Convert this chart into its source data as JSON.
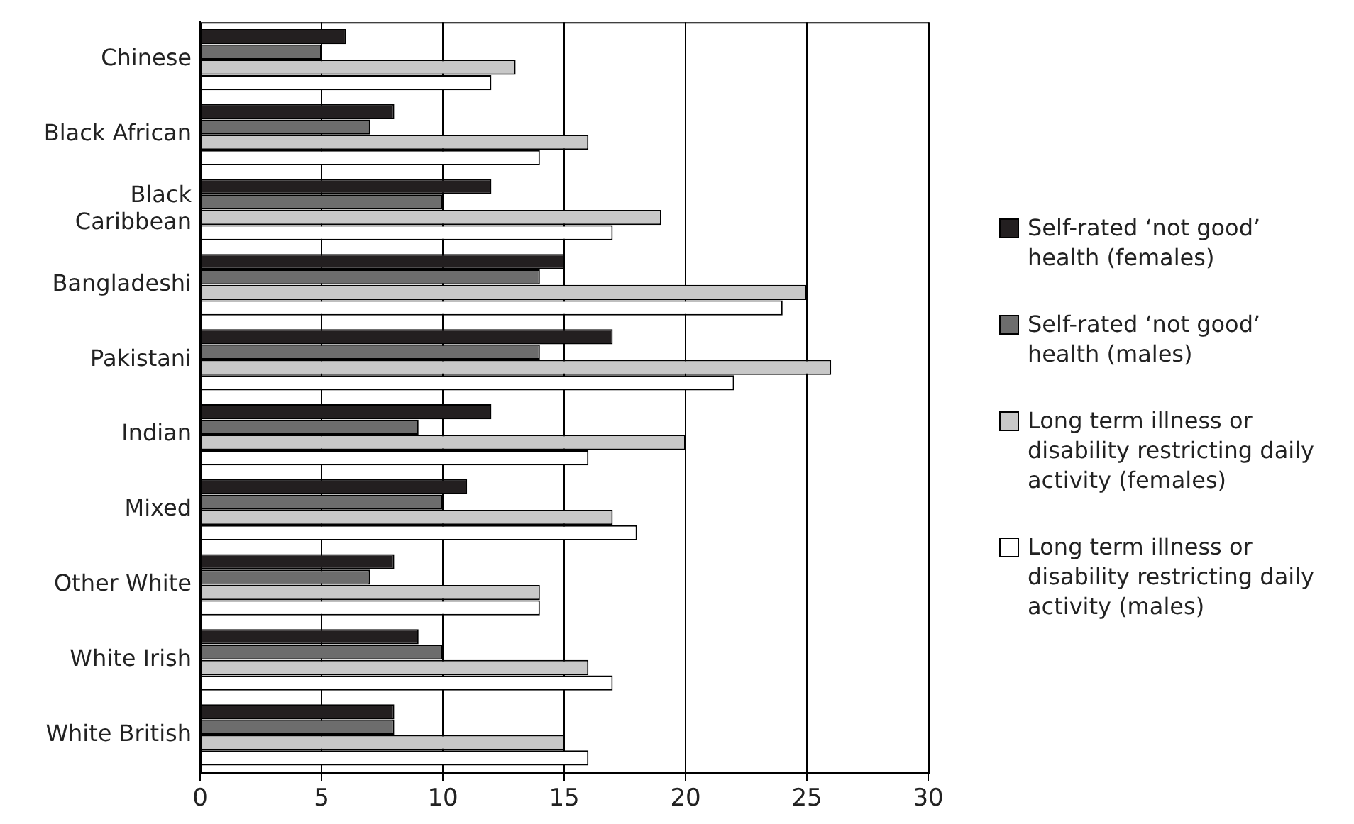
{
  "chart_data": {
    "type": "bar",
    "orientation": "horizontal",
    "categories": [
      "Chinese",
      "Black African",
      "Black Caribbean",
      "Bangladeshi",
      "Pakistani",
      "Indian",
      "Mixed",
      "Other White",
      "White Irish",
      "White British"
    ],
    "series": [
      {
        "name": "Self-rated ‘not good’ health (females)",
        "color": "#231f20",
        "values": [
          6,
          8,
          12,
          15,
          17,
          12,
          11,
          8,
          9,
          8
        ]
      },
      {
        "name": "Self-rated ‘not good’ health (males)",
        "color": "#6d6d6d",
        "values": [
          5,
          7,
          10,
          14,
          14,
          9,
          10,
          7,
          10,
          8
        ]
      },
      {
        "name": "Long term illness or disability restricting daily activity (females)",
        "color": "#c8c8c8",
        "values": [
          13,
          16,
          19,
          25,
          26,
          20,
          17,
          14,
          16,
          15
        ]
      },
      {
        "name": "Long term illness or disability restricting daily activity (males)",
        "color": "#ffffff",
        "values": [
          12,
          14,
          17,
          24,
          22,
          16,
          18,
          14,
          17,
          16
        ]
      }
    ],
    "xlim": [
      0,
      30
    ],
    "xticks": [
      0,
      5,
      10,
      15,
      20,
      25,
      30
    ],
    "grid": "x",
    "legend": "right"
  }
}
